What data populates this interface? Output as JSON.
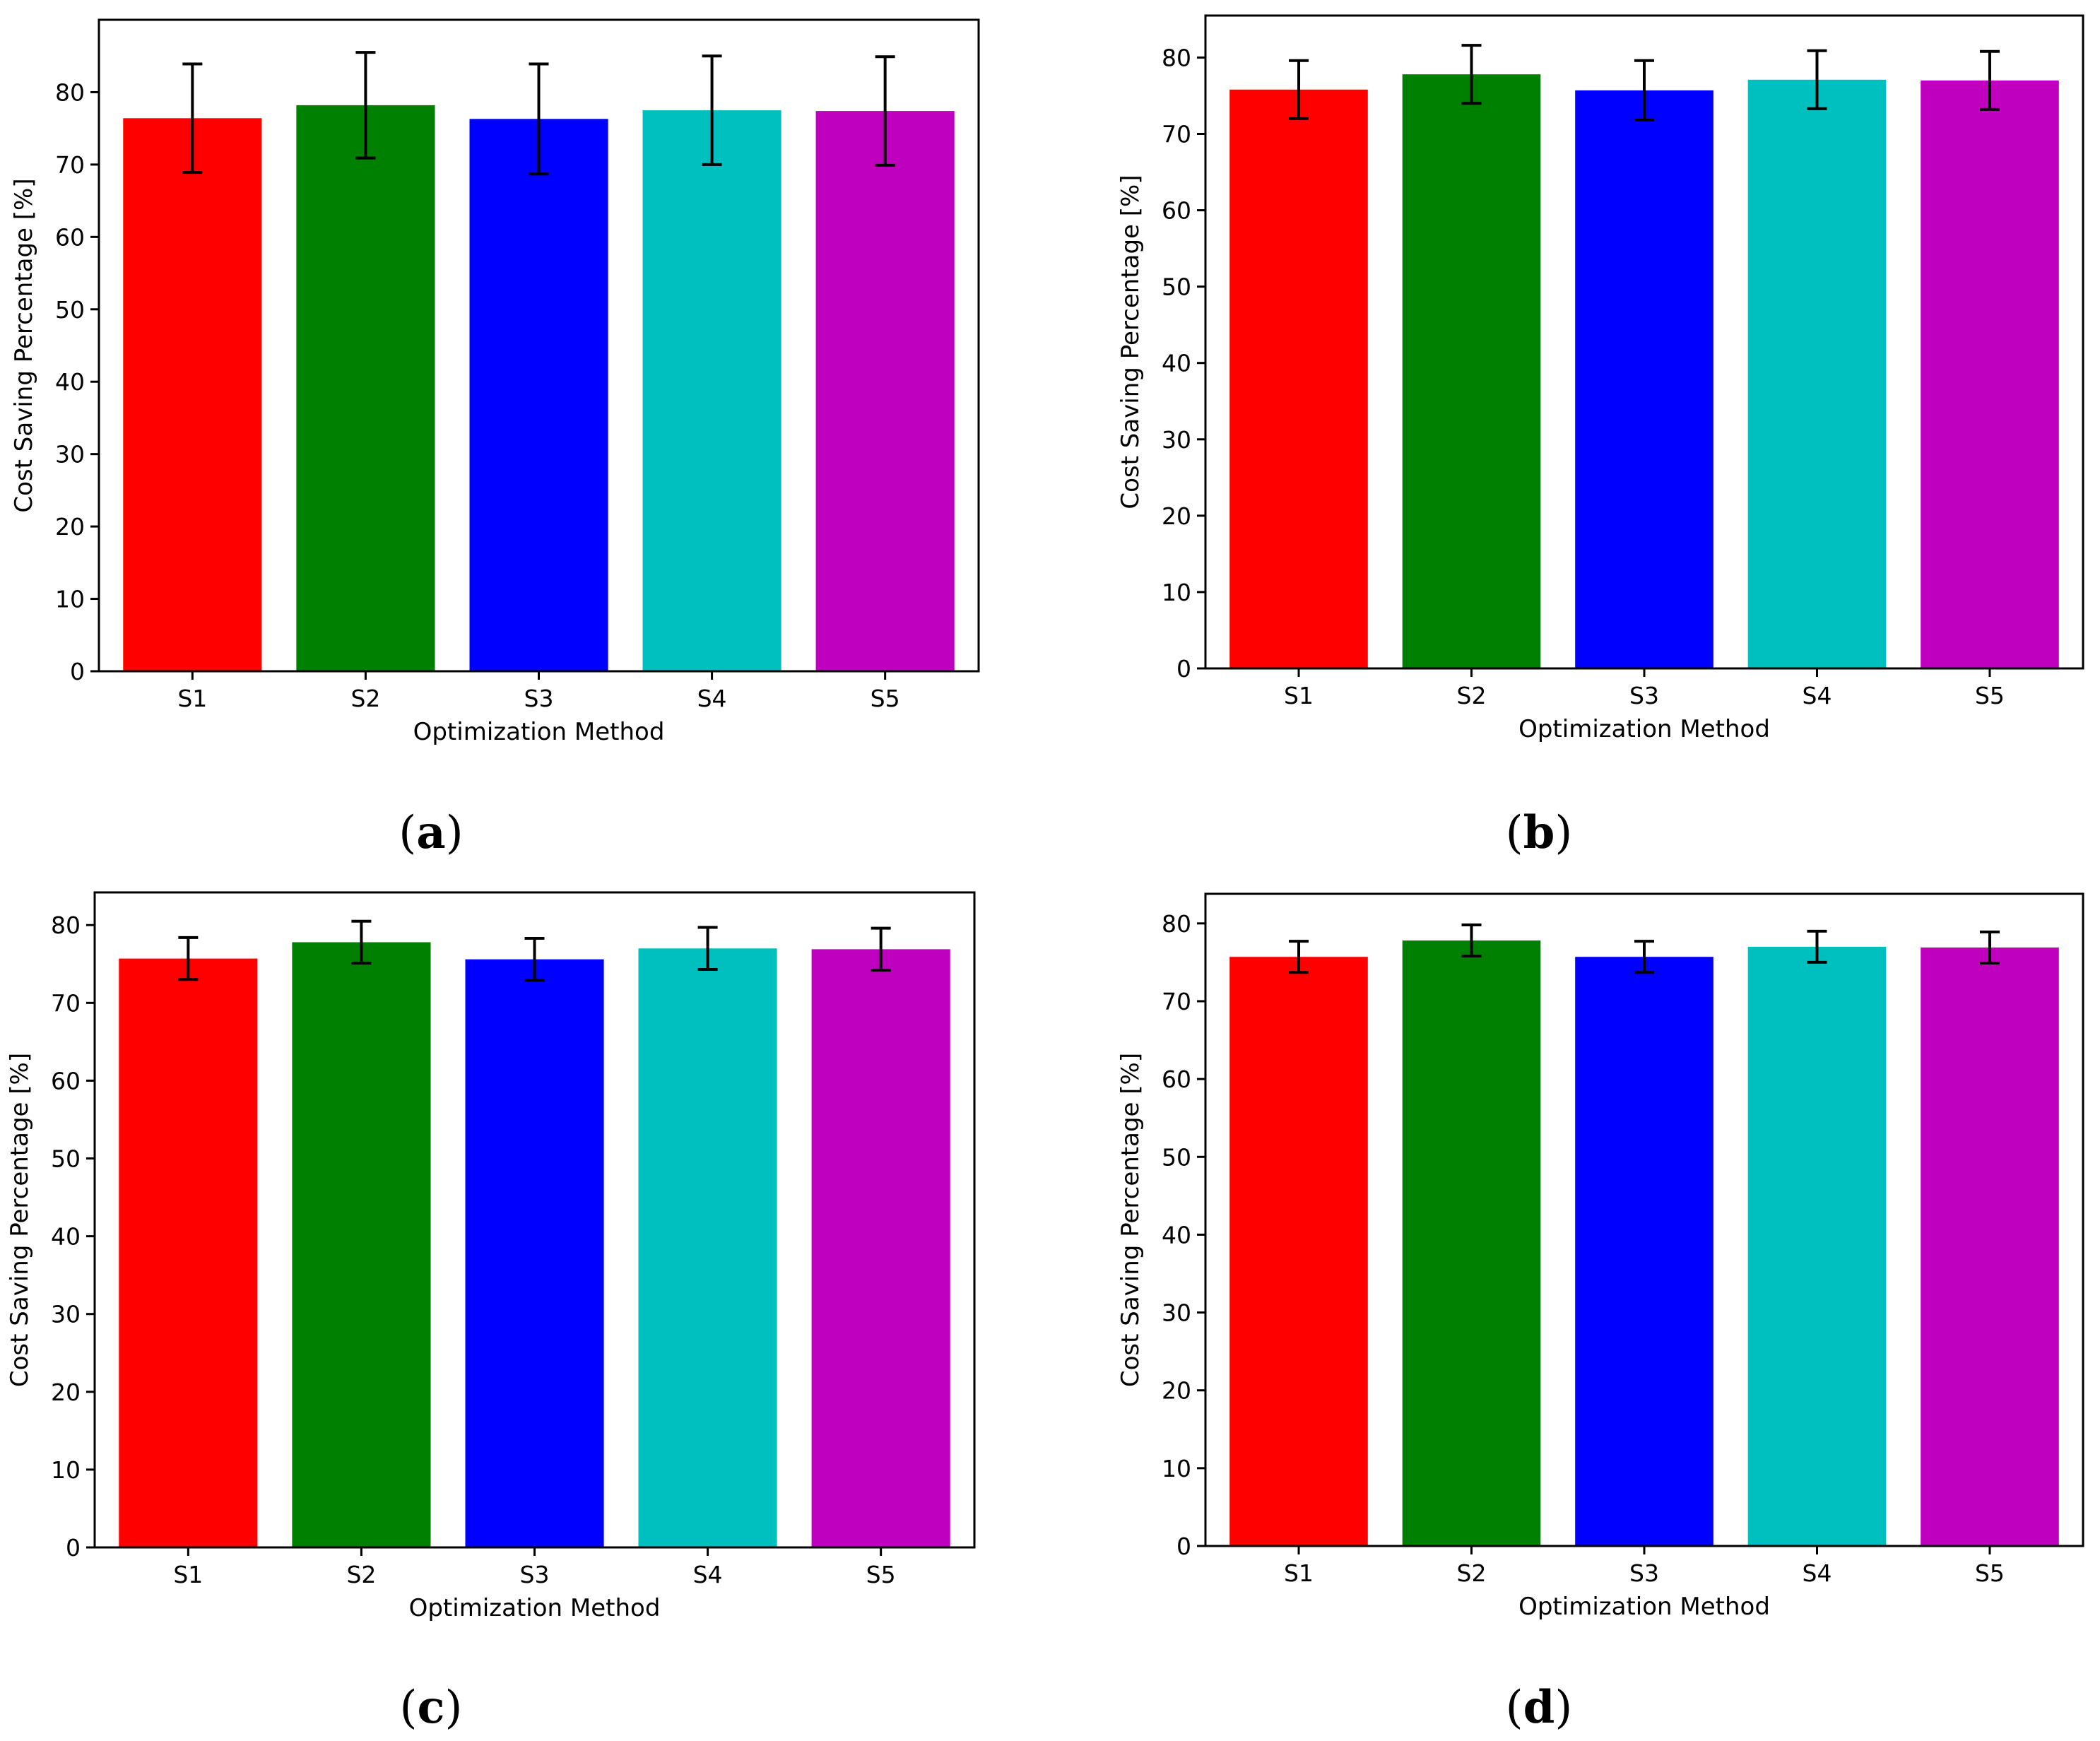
{
  "chart_data": [
    {
      "panel": "(a)",
      "panel_letter": "a",
      "type": "bar",
      "title": "",
      "xlabel": "Optimization Method",
      "ylabel": "Cost Saving Percentage [%]",
      "categories": [
        "S1",
        "S2",
        "S3",
        "S4",
        "S5"
      ],
      "values": [
        76.4,
        78.2,
        76.3,
        77.5,
        77.4
      ],
      "errors": [
        7.5,
        7.3,
        7.6,
        7.5,
        7.5
      ],
      "colors": [
        "#ff0000",
        "#008000",
        "#0000ff",
        "#00bfbf",
        "#bf00bf"
      ],
      "ylim": [
        0,
        90
      ],
      "yticks": [
        0,
        10,
        20,
        30,
        40,
        50,
        60,
        70,
        80
      ],
      "grid": false
    },
    {
      "panel": "(b)",
      "panel_letter": "b",
      "type": "bar",
      "title": "",
      "xlabel": "Optimization Method",
      "ylabel": "Cost Saving Percentage [%]",
      "categories": [
        "S1",
        "S2",
        "S3",
        "S4",
        "S5"
      ],
      "values": [
        75.8,
        77.8,
        75.7,
        77.1,
        77.0
      ],
      "errors": [
        3.8,
        3.8,
        3.9,
        3.8,
        3.8
      ],
      "colors": [
        "#ff0000",
        "#008000",
        "#0000ff",
        "#00bfbf",
        "#bf00bf"
      ],
      "ylim": [
        0,
        85.5
      ],
      "yticks": [
        0,
        10,
        20,
        30,
        40,
        50,
        60,
        70,
        80
      ],
      "grid": false
    },
    {
      "panel": "(c)",
      "panel_letter": "c",
      "type": "bar",
      "title": "",
      "xlabel": "Optimization Method",
      "ylabel": "Cost Saving Percentage [%]",
      "categories": [
        "S1",
        "S2",
        "S3",
        "S4",
        "S5"
      ],
      "values": [
        75.7,
        77.8,
        75.6,
        77.0,
        76.9
      ],
      "errors": [
        2.7,
        2.7,
        2.7,
        2.7,
        2.7
      ],
      "colors": [
        "#ff0000",
        "#008000",
        "#0000ff",
        "#00bfbf",
        "#bf00bf"
      ],
      "ylim": [
        0,
        84.2
      ],
      "yticks": [
        0,
        10,
        20,
        30,
        40,
        50,
        60,
        70,
        80
      ],
      "grid": false
    },
    {
      "panel": "(d)",
      "panel_letter": "d",
      "type": "bar",
      "title": "",
      "xlabel": "Optimization Method",
      "ylabel": "Cost Saving Percentage [%]",
      "categories": [
        "S1",
        "S2",
        "S3",
        "S4",
        "S5"
      ],
      "values": [
        75.7,
        77.8,
        75.7,
        77.0,
        76.9
      ],
      "errors": [
        2.0,
        2.0,
        2.0,
        2.0,
        2.0
      ],
      "colors": [
        "#ff0000",
        "#008000",
        "#0000ff",
        "#00bfbf",
        "#bf00bf"
      ],
      "ylim": [
        0,
        83.8
      ],
      "yticks": [
        0,
        10,
        20,
        30,
        40,
        50,
        60,
        70,
        80
      ],
      "grid": false
    }
  ]
}
